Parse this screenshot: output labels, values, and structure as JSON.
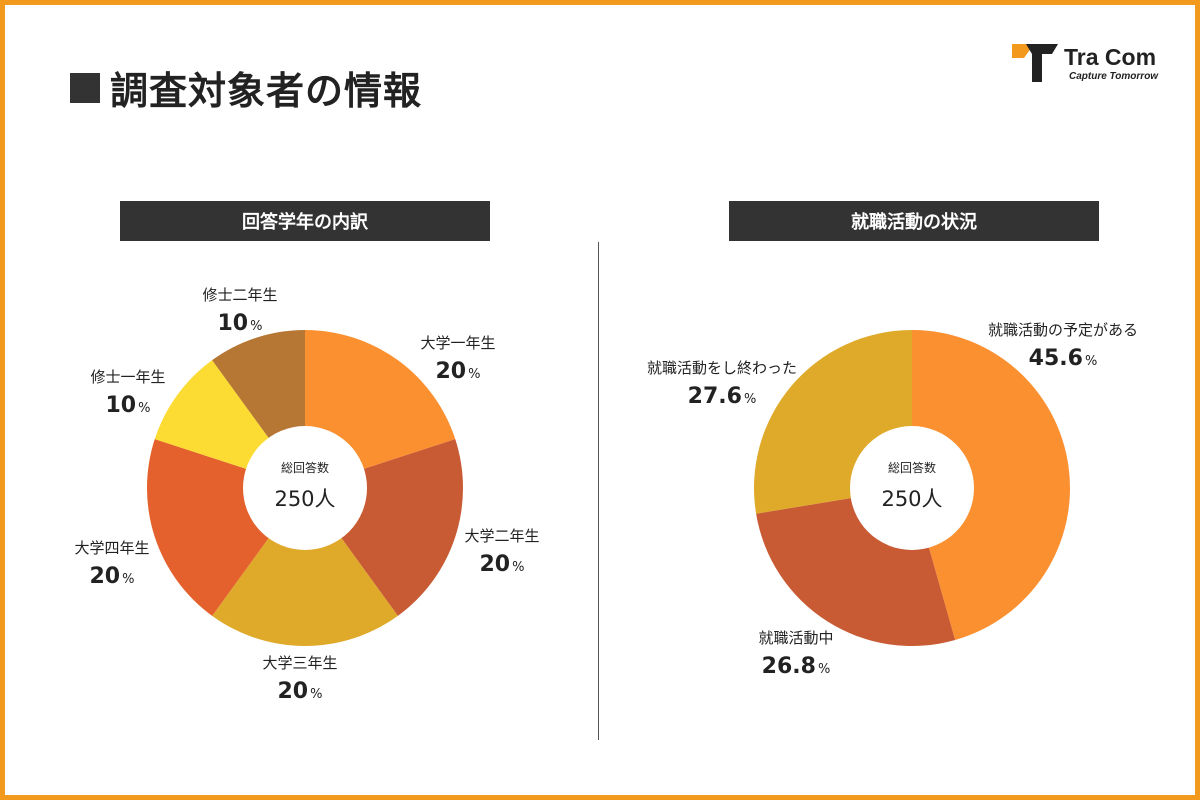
{
  "page": {
    "title": "調査対象者の情報"
  },
  "logo": {
    "name": "Tra Com",
    "tagline": "Capture Tomorrow"
  },
  "colors": {
    "accent_border": "#f39a1e",
    "header_bg": "#333333"
  },
  "chart_data": [
    {
      "type": "donut",
      "title": "回答学年の内訳",
      "center_caption": "総回答数",
      "center_total": "250人",
      "unit": "%",
      "slices": [
        {
          "label": "大学一年生",
          "value": 20,
          "display": "20",
          "color": "#fb9031"
        },
        {
          "label": "大学二年生",
          "value": 20,
          "display": "20",
          "color": "#c95b34"
        },
        {
          "label": "大学三年生",
          "value": 20,
          "display": "20",
          "color": "#dfaa2a"
        },
        {
          "label": "大学四年生",
          "value": 20,
          "display": "20",
          "color": "#e4602d"
        },
        {
          "label": "修士一年生",
          "value": 10,
          "display": "10",
          "color": "#fcdb33"
        },
        {
          "label": "修士二年生",
          "value": 10,
          "display": "10",
          "color": "#b67634"
        }
      ]
    },
    {
      "type": "donut",
      "title": "就職活動の状況",
      "center_caption": "総回答数",
      "center_total": "250人",
      "unit": "%",
      "slices": [
        {
          "label": "就職活動の予定がある",
          "value": 45.6,
          "display": "45.6",
          "color": "#fb9031"
        },
        {
          "label": "就職活動中",
          "value": 26.8,
          "display": "26.8",
          "color": "#c95b34"
        },
        {
          "label": "就職活動をし終わった",
          "value": 27.6,
          "display": "27.6",
          "color": "#dfaa2a"
        }
      ]
    }
  ]
}
